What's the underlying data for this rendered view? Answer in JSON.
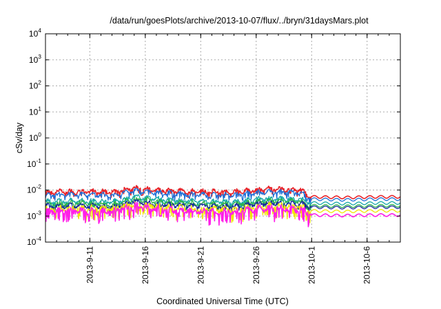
{
  "chart_data": {
    "type": "line",
    "title": "/data/run/goesPlots/archive/2013-10-07/flux/../bryn/31daysMars.plot",
    "xlabel": "Coordinated Universal Time (UTC)",
    "ylabel": "cSv/day",
    "yscale": "log",
    "ylim": [
      0.0001,
      10000
    ],
    "xlim": [
      "2013-09-07",
      "2013-10-09"
    ],
    "grid": true,
    "y_ticks": [
      {
        "base": "10",
        "exp": "-4",
        "value": 0.0001
      },
      {
        "base": "10",
        "exp": "-3",
        "value": 0.001
      },
      {
        "base": "10",
        "exp": "-2",
        "value": 0.01
      },
      {
        "base": "10",
        "exp": "-1",
        "value": 0.1
      },
      {
        "base": "10",
        "exp": "0",
        "value": 1
      },
      {
        "base": "10",
        "exp": "1",
        "value": 10
      },
      {
        "base": "10",
        "exp": "2",
        "value": 100
      },
      {
        "base": "10",
        "exp": "3",
        "value": 1000
      },
      {
        "base": "10",
        "exp": "4",
        "value": 10000
      }
    ],
    "x_ticks": [
      "2013-9-11",
      "2013-9-16",
      "2013-9-21",
      "2013-9-26",
      "2013-10-1",
      "2013-10-6"
    ],
    "x_tick_dates": [
      "2013-09-11",
      "2013-09-16",
      "2013-09-21",
      "2013-09-26",
      "2013-10-01",
      "2013-10-06"
    ],
    "series": [
      {
        "color": "#e8242a",
        "points": [
          [
            "2013-09-07",
            0.0085
          ],
          [
            "2013-09-10",
            0.009
          ],
          [
            "2013-09-13",
            0.0085
          ],
          [
            "2013-09-15",
            0.012
          ],
          [
            "2013-09-18",
            0.0095
          ],
          [
            "2013-09-21",
            0.0088
          ],
          [
            "2013-09-24",
            0.0085
          ],
          [
            "2013-09-27",
            0.011
          ],
          [
            "2013-09-30",
            0.0105
          ],
          [
            "2013-10-01",
            0.0055
          ],
          [
            "2013-10-04",
            0.0052
          ],
          [
            "2013-10-07",
            0.0055
          ],
          [
            "2013-10-09",
            0.0055
          ]
        ]
      },
      {
        "color": "#1f6fd6",
        "points": [
          [
            "2013-09-07",
            0.0065
          ],
          [
            "2013-09-10",
            0.007
          ],
          [
            "2013-09-13",
            0.0065
          ],
          [
            "2013-09-15",
            0.0095
          ],
          [
            "2013-09-18",
            0.0075
          ],
          [
            "2013-09-21",
            0.0068
          ],
          [
            "2013-09-24",
            0.0065
          ],
          [
            "2013-09-27",
            0.0085
          ],
          [
            "2013-09-30",
            0.0082
          ],
          [
            "2013-10-01",
            0.0045
          ],
          [
            "2013-10-04",
            0.0042
          ],
          [
            "2013-10-07",
            0.0045
          ],
          [
            "2013-10-09",
            0.0045
          ]
        ]
      },
      {
        "color": "#17a9a9",
        "points": [
          [
            "2013-09-07",
            0.0036
          ],
          [
            "2013-09-10",
            0.004
          ],
          [
            "2013-09-13",
            0.0035
          ],
          [
            "2013-09-15",
            0.0055
          ],
          [
            "2013-09-18",
            0.0042
          ],
          [
            "2013-09-21",
            0.0038
          ],
          [
            "2013-09-24",
            0.0036
          ],
          [
            "2013-09-27",
            0.0048
          ],
          [
            "2013-09-30",
            0.0045
          ],
          [
            "2013-10-01",
            0.0032
          ],
          [
            "2013-10-04",
            0.003
          ],
          [
            "2013-10-07",
            0.0032
          ],
          [
            "2013-10-09",
            0.0032
          ]
        ]
      },
      {
        "color": "#2db34a",
        "points": [
          [
            "2013-09-07",
            0.0029
          ],
          [
            "2013-09-10",
            0.0032
          ],
          [
            "2013-09-13",
            0.0028
          ],
          [
            "2013-09-15",
            0.0045
          ],
          [
            "2013-09-18",
            0.0034
          ],
          [
            "2013-09-21",
            0.003
          ],
          [
            "2013-09-24",
            0.0029
          ],
          [
            "2013-09-27",
            0.0039
          ],
          [
            "2013-09-30",
            0.0037
          ],
          [
            "2013-10-01",
            0.0025
          ],
          [
            "2013-10-04",
            0.0024
          ],
          [
            "2013-10-07",
            0.0025
          ],
          [
            "2013-10-09",
            0.0025
          ]
        ]
      },
      {
        "color": "#1a2a9e",
        "points": [
          [
            "2013-09-07",
            0.0024
          ],
          [
            "2013-09-10",
            0.0026
          ],
          [
            "2013-09-13",
            0.0023
          ],
          [
            "2013-09-15",
            0.0036
          ],
          [
            "2013-09-18",
            0.0028
          ],
          [
            "2013-09-21",
            0.0025
          ],
          [
            "2013-09-24",
            0.0024
          ],
          [
            "2013-09-27",
            0.0032
          ],
          [
            "2013-09-30",
            0.003
          ],
          [
            "2013-10-01",
            0.0022
          ],
          [
            "2013-10-04",
            0.0021
          ],
          [
            "2013-10-07",
            0.0022
          ],
          [
            "2013-10-09",
            0.0022
          ]
        ]
      },
      {
        "color": "#f0e600",
        "points": [
          [
            "2013-09-07",
            0.0018
          ],
          [
            "2013-09-10",
            0.002
          ],
          [
            "2013-09-13",
            0.0018
          ],
          [
            "2013-09-15",
            0.0028
          ],
          [
            "2013-09-18",
            0.0021
          ],
          [
            "2013-09-21",
            0.0019
          ],
          [
            "2013-09-24",
            0.0018
          ],
          [
            "2013-09-27",
            0.0024
          ],
          [
            "2013-09-30",
            0.0023
          ],
          [
            "2013-10-01",
            0.0016
          ],
          [
            "2013-10-04",
            0.0015
          ],
          [
            "2013-10-07",
            0.0016
          ],
          [
            "2013-10-09",
            0.0016
          ]
        ]
      },
      {
        "color": "#ff1ee8",
        "points": [
          [
            "2013-09-07",
            0.0014
          ],
          [
            "2013-09-10",
            0.0016
          ],
          [
            "2013-09-13",
            0.0014
          ],
          [
            "2013-09-15",
            0.0024
          ],
          [
            "2013-09-18",
            0.0017
          ],
          [
            "2013-09-21",
            0.0015
          ],
          [
            "2013-09-24",
            0.0014
          ],
          [
            "2013-09-27",
            0.002
          ],
          [
            "2013-09-30",
            0.0019
          ],
          [
            "2013-10-01",
            0.0011
          ],
          [
            "2013-10-04",
            0.00105
          ],
          [
            "2013-10-07",
            0.0011
          ],
          [
            "2013-10-09",
            0.0011
          ]
        ]
      }
    ]
  }
}
